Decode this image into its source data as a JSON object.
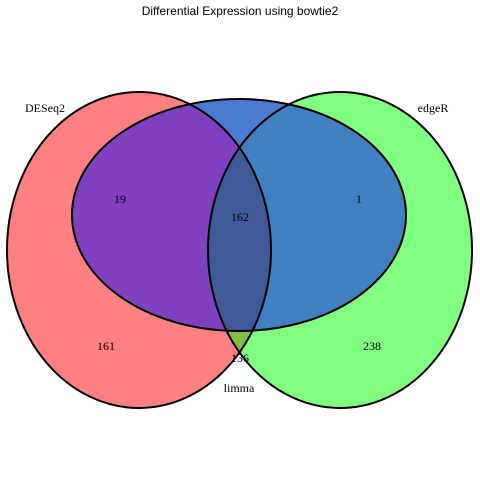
{
  "title": "Differential Expression using bowtie2",
  "sets": [
    {
      "name": "DESeq2",
      "color": "#ff8080"
    },
    {
      "name": "edgeR",
      "color": "#80ff80"
    },
    {
      "name": "limma",
      "color": "#4a7bd0"
    }
  ],
  "regions": {
    "deseq2_only": 161,
    "edger_only": 238,
    "deseq2_limma": 19,
    "edger_limma": 1,
    "all_three": 162,
    "deseq2_edger": 136
  },
  "colors": {
    "deseq2_edger_overlap": "#80bf40",
    "deseq2_limma_overlap": "#8040c0",
    "edger_limma_overlap": "#4080c0",
    "all_three_overlap": "#405a98",
    "outline": "#000000"
  }
}
